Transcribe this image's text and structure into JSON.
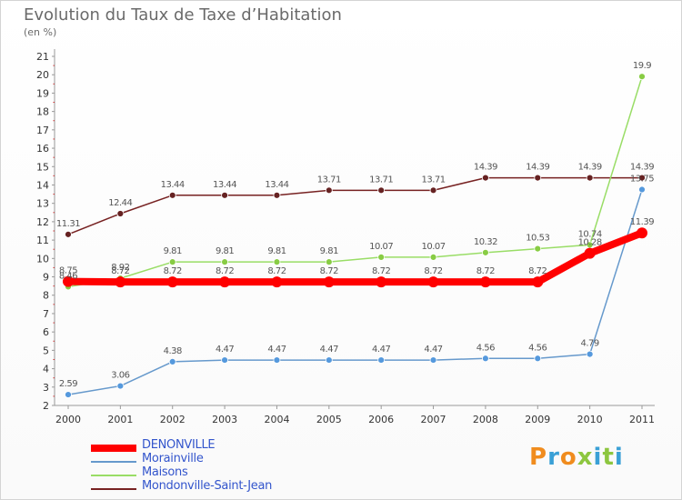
{
  "title": "Evolution du Taux de Taxe d’Habitation",
  "subtitle": "(en %)",
  "brand": {
    "text": "Proxiti",
    "colors": [
      "#f08c1e",
      "#3aa0d6",
      "#f08c1e",
      "#8dc63f",
      "#3aa0d6",
      "#8dc63f",
      "#3aa0d6"
    ]
  },
  "chart_data": {
    "type": "line",
    "title": "Evolution du Taux de Taxe d’Habitation",
    "subtitle": "(en %)",
    "x": [
      "2000",
      "2001",
      "2002",
      "2003",
      "2004",
      "2005",
      "2006",
      "2007",
      "2008",
      "2009",
      "2010",
      "2011"
    ],
    "ylim": [
      2,
      21
    ],
    "yticks": [
      "2",
      "3",
      "4",
      "5",
      "6",
      "7",
      "8",
      "9",
      "10",
      "11",
      "12",
      "13",
      "14",
      "15",
      "16",
      "17",
      "18",
      "19",
      "20",
      "21"
    ],
    "grid": false,
    "legend_position": "bottom-left",
    "series": [
      {
        "name": "DENONVILLE",
        "color": "#ff0000",
        "values": [
          8.75,
          8.72,
          8.72,
          8.72,
          8.72,
          8.72,
          8.72,
          8.72,
          8.72,
          8.72,
          10.28,
          11.39
        ],
        "labels": [
          "8.75",
          "8.72",
          "8.72",
          "8.72",
          "8.72",
          "8.72",
          "8.72",
          "8.72",
          "8.72",
          "8.72",
          "10.28",
          "11.39"
        ]
      },
      {
        "name": "Morainville",
        "color": "#6699cc",
        "values": [
          2.59,
          3.06,
          4.38,
          4.47,
          4.47,
          4.47,
          4.47,
          4.47,
          4.56,
          4.56,
          4.79,
          13.75
        ],
        "labels": [
          "2.59",
          "3.06",
          "4.38",
          "4.47",
          "4.47",
          "4.47",
          "4.47",
          "4.47",
          "4.56",
          "4.56",
          "4.79",
          "13.75"
        ]
      },
      {
        "name": "Maisons",
        "color": "#99dd66",
        "values": [
          8.46,
          8.92,
          9.81,
          9.81,
          9.81,
          9.81,
          10.07,
          10.07,
          10.32,
          10.53,
          10.74,
          19.9
        ],
        "labels": [
          "8.46",
          "8.92",
          "9.81",
          "9.81",
          "9.81",
          "9.81",
          "10.07",
          "10.07",
          "10.32",
          "10.53",
          "10.74",
          "19.9"
        ]
      },
      {
        "name": "Mondonville-Saint-Jean",
        "color": "#772222",
        "values": [
          11.31,
          12.44,
          13.44,
          13.44,
          13.44,
          13.71,
          13.71,
          13.71,
          14.39,
          14.39,
          14.39,
          14.39
        ],
        "labels": [
          "11.31",
          "12.44",
          "13.44",
          "13.44",
          "13.44",
          "13.71",
          "13.71",
          "13.71",
          "14.39",
          "14.39",
          "14.39",
          "14.39"
        ]
      }
    ]
  }
}
